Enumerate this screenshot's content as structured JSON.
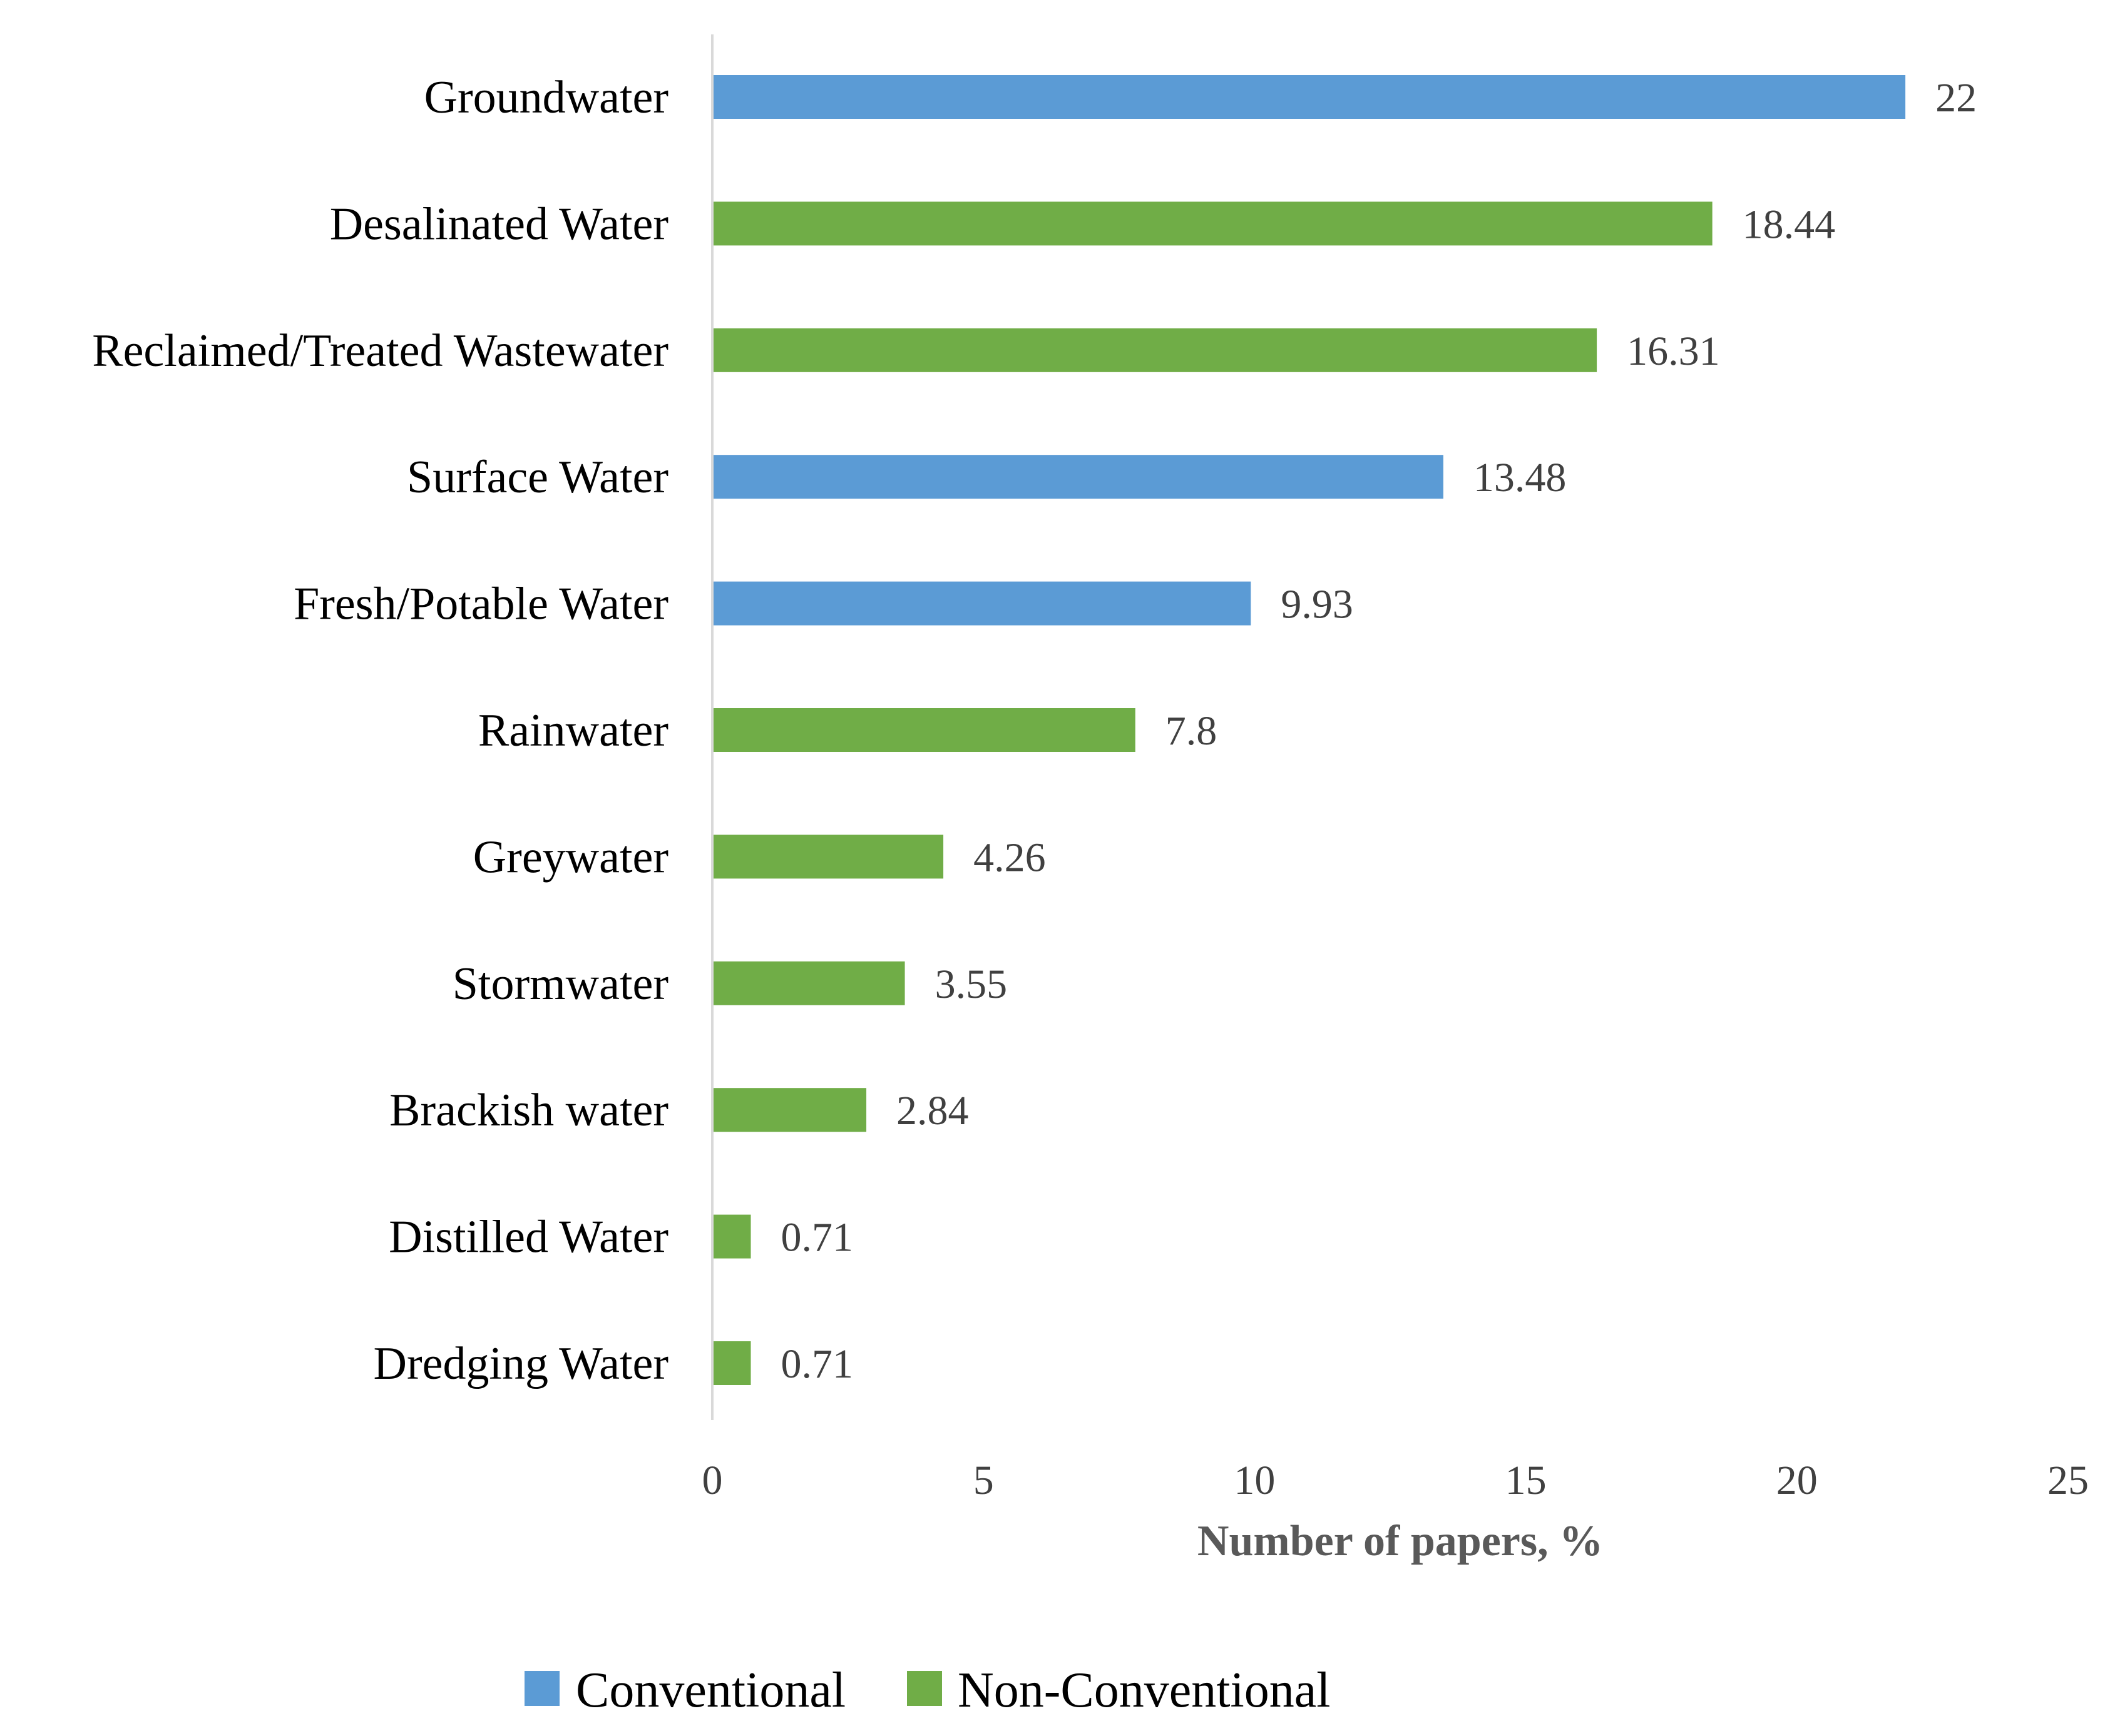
{
  "chart_data": {
    "type": "bar",
    "orientation": "horizontal",
    "title": "",
    "xlabel": "Number of papers, %",
    "ylabel": "",
    "xlim": [
      0,
      25
    ],
    "xticks": [
      0,
      5,
      10,
      15,
      20,
      25
    ],
    "grid": false,
    "legend_position": "bottom-center",
    "categories": [
      "Groundwater",
      "Desalinated Water",
      "Reclaimed/Treated Wastewater",
      "Surface Water",
      "Fresh/Potable Water",
      "Rainwater",
      "Greywater",
      "Stormwater",
      "Brackish water",
      "Distilled Water",
      "Dredging Water"
    ],
    "values": [
      22,
      18.44,
      16.31,
      13.48,
      9.93,
      7.8,
      4.26,
      3.55,
      2.84,
      0.71,
      0.71
    ],
    "value_labels": [
      "22",
      "18.44",
      "16.31",
      "13.48",
      "9.93",
      "7.8",
      "4.26",
      "3.55",
      "2.84",
      "0.71",
      "0.71"
    ],
    "groups": [
      "Conventional",
      "Non-Conventional",
      "Non-Conventional",
      "Conventional",
      "Conventional",
      "Non-Conventional",
      "Non-Conventional",
      "Non-Conventional",
      "Non-Conventional",
      "Non-Conventional",
      "Non-Conventional"
    ],
    "series": [
      {
        "name": "Conventional",
        "color": "#5B9BD5"
      },
      {
        "name": "Non-Conventional",
        "color": "#70AD47"
      }
    ]
  }
}
